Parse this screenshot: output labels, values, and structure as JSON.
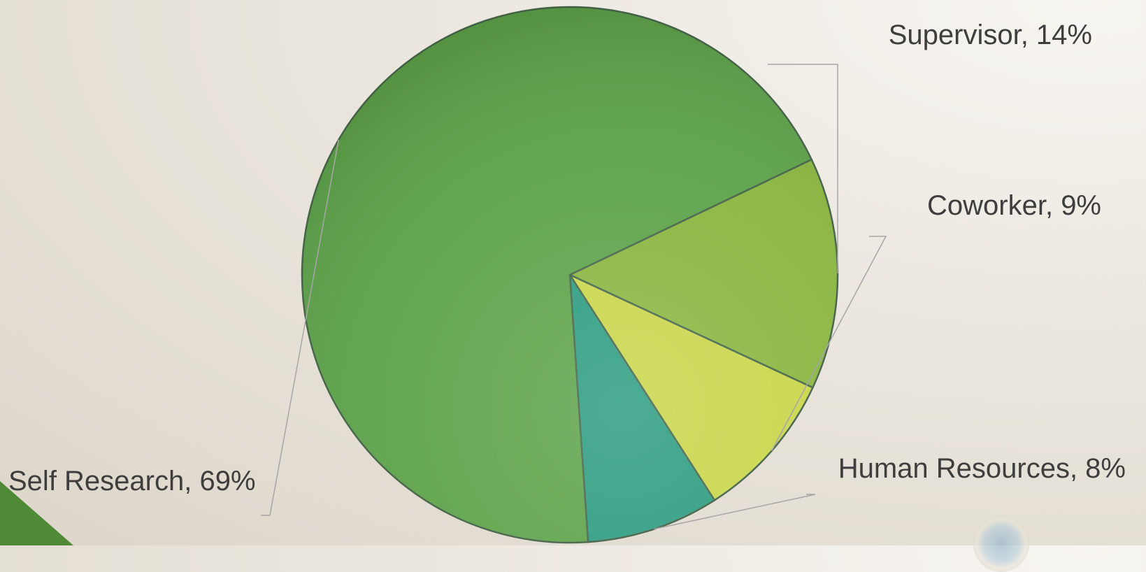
{
  "chart_data": {
    "type": "pie",
    "slices": [
      {
        "label": "Supervisor",
        "value": 14,
        "display": "Supervisor, 14%",
        "color": "#8ab640"
      },
      {
        "label": "Coworker",
        "value": 9,
        "display": "Coworker, 9%",
        "color": "#c9d64a"
      },
      {
        "label": "Human Resources",
        "value": 8,
        "display": "Human Resources, 8%",
        "color": "#2c9c80"
      },
      {
        "label": "Self Research",
        "value": 69,
        "display": "Self Research, 69%",
        "color": "#5ea34a"
      }
    ],
    "title": "",
    "legend": "none",
    "labels": "outside with leader lines"
  }
}
